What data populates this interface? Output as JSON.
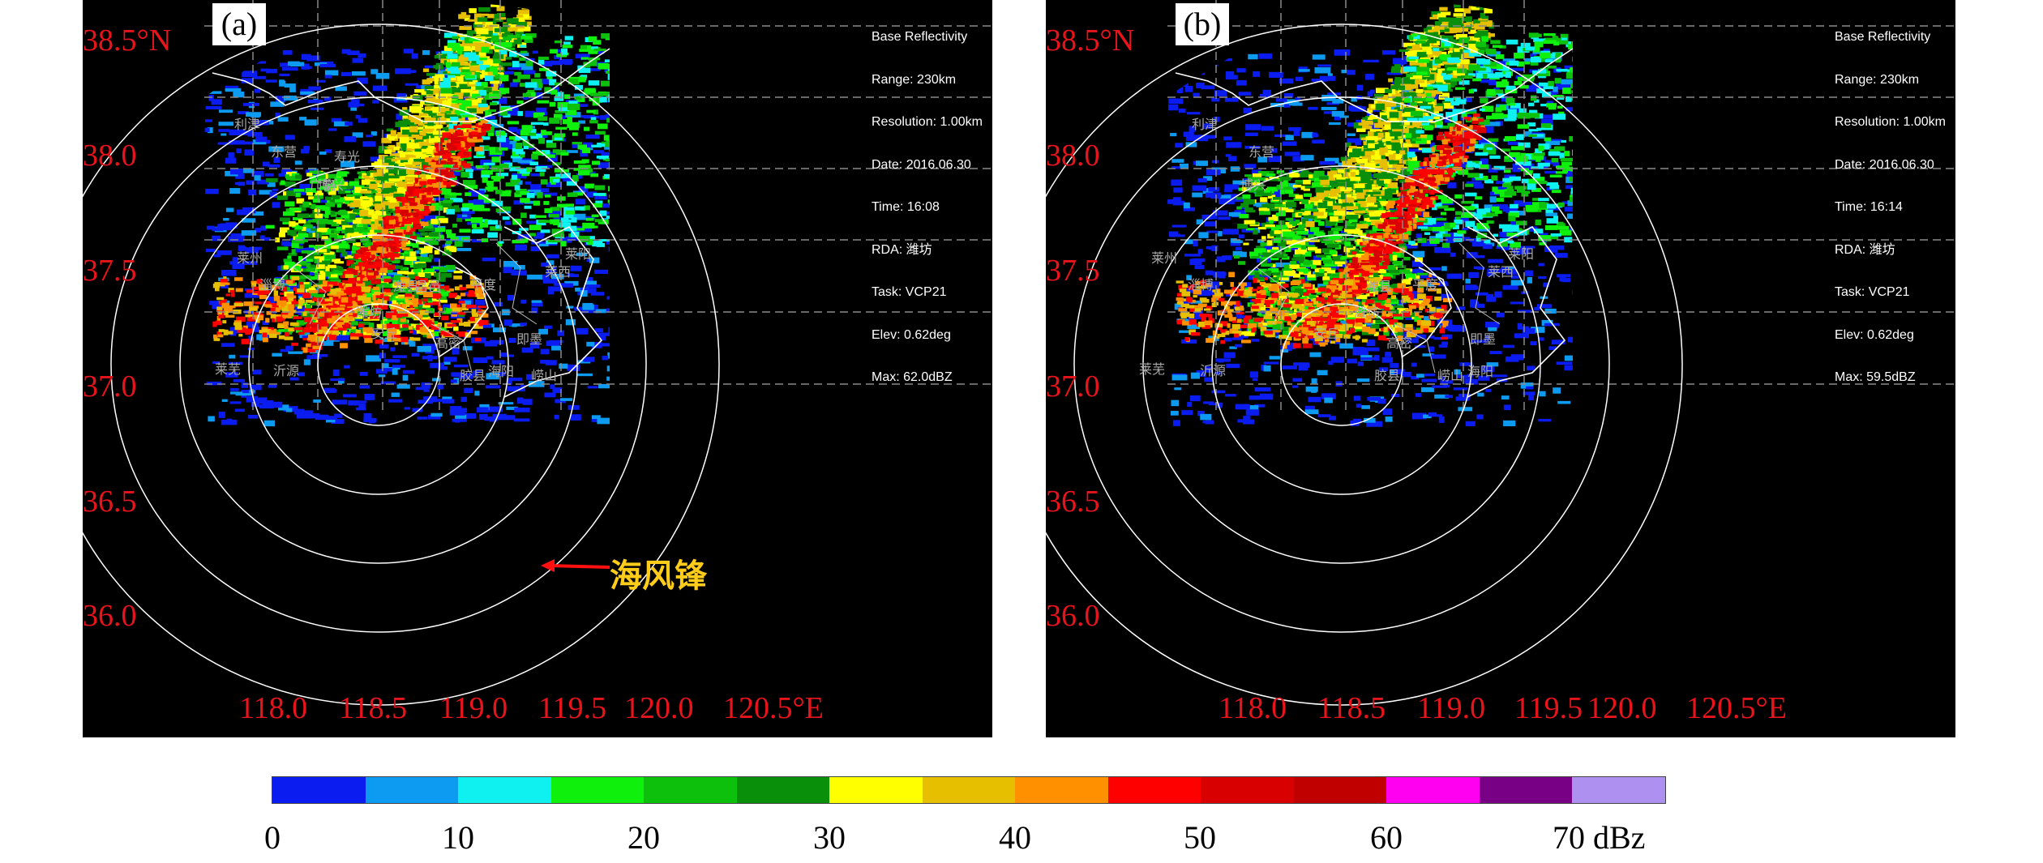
{
  "panels": [
    {
      "label": "(a)",
      "info_lines": [
        "Base Reflectivity",
        "Range: 230km",
        "Resolution: 1.00km",
        "Date: 2016.06.30",
        "Time: 16:08",
        "RDA: 潍坊",
        "Task: VCP21",
        "Elev: 0.62deg",
        "Max: 62.0dBZ"
      ],
      "annotation": "海风锋"
    },
    {
      "label": "(b)",
      "info_lines": [
        "Base Reflectivity",
        "Range: 230km",
        "Resolution: 1.00km",
        "Date: 2016.06.30",
        "Time: 16:14",
        "RDA: 潍坊",
        "Task: VCP21",
        "Elev: 0.62deg",
        "Max: 59.5dBZ"
      ]
    }
  ],
  "lat_labels": [
    "38.5°N",
    "38.0",
    "37.5",
    "37.0",
    "36.5",
    "36.0"
  ],
  "lon_labels": [
    "118.0",
    "118.5",
    "119.0",
    "119.5",
    "120.0",
    "120.5°E"
  ],
  "cities_a": [
    "潍坊",
    "安丘",
    "高密",
    "即墨",
    "平度",
    "莱西",
    "莱阳",
    "昌邑",
    "寿光",
    "广饶",
    "淄博",
    "沂源",
    "莱芜",
    "海阳",
    "莱州",
    "潍县",
    "胶县",
    "崂山",
    "利津",
    "东营",
    "博兴"
  ],
  "cities_b": [
    "潍坊",
    "安丘",
    "高密",
    "即墨",
    "平度",
    "莱西",
    "莱阳",
    "潍县",
    "胶县",
    "崂山",
    "淄博",
    "沂源",
    "莱芜",
    "海阳",
    "莱州",
    "东营",
    "利津",
    "博兴"
  ],
  "colorbar": {
    "colors": [
      "#0a1cf0",
      "#0c9bf0",
      "#0ff0f0",
      "#0ff00c",
      "#0cc00c",
      "#0a8f0a",
      "#ffff00",
      "#e6c000",
      "#ff9000",
      "#ff0000",
      "#d80000",
      "#c00000",
      "#ff00f0",
      "#780084",
      "#ad90f0"
    ],
    "labels": [
      "0",
      "10",
      "20",
      "30",
      "40",
      "50",
      "60",
      "70 dBz"
    ],
    "min": 0,
    "max": 75,
    "unit": "dBz"
  }
}
